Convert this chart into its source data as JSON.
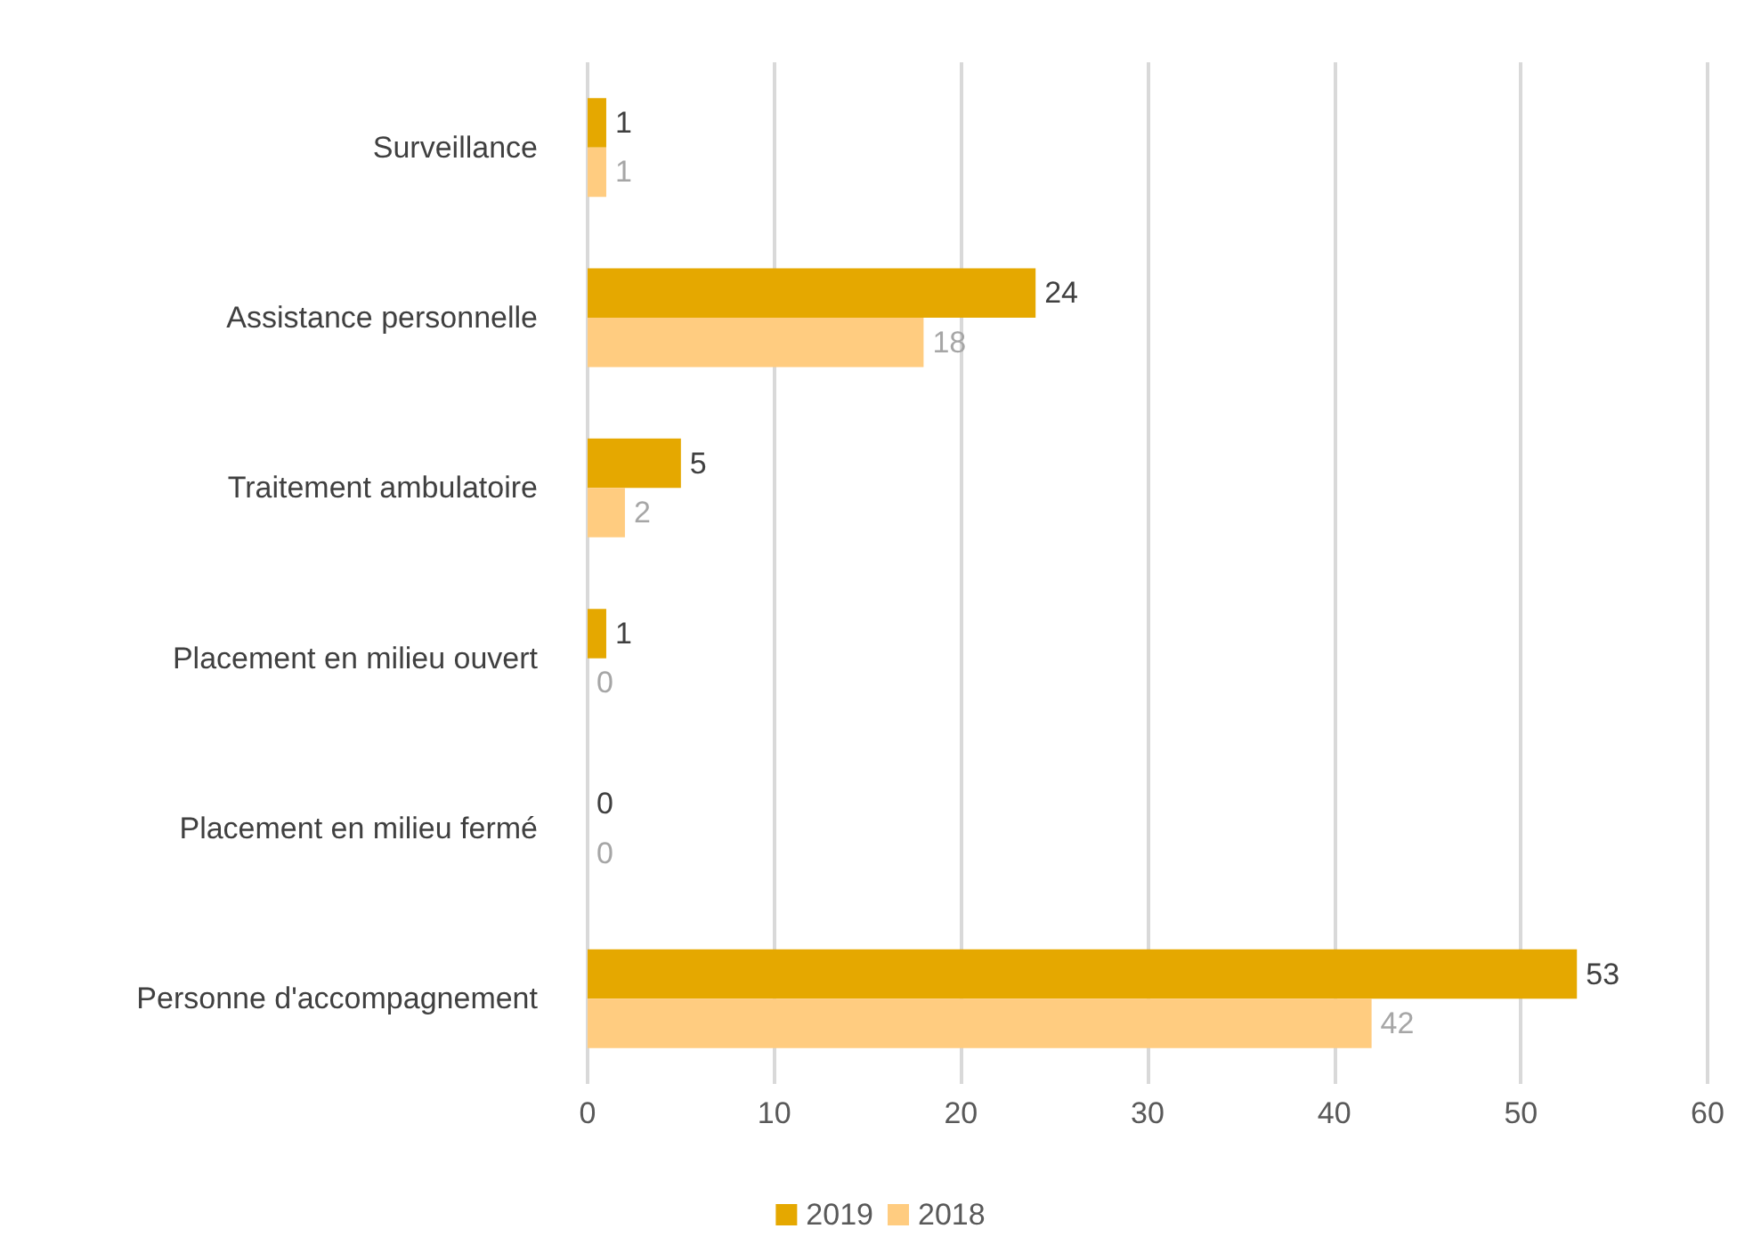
{
  "chart_data": {
    "type": "bar",
    "orientation": "horizontal",
    "categories": [
      "Surveillance",
      "Assistance personnelle",
      "Traitement ambulatoire",
      "Placement en milieu ouvert",
      "Placement en milieu fermé",
      "Personne d'accompagnement"
    ],
    "series": [
      {
        "name": "2019",
        "color": "#e5a800",
        "values": [
          1,
          24,
          5,
          1,
          0,
          53
        ]
      },
      {
        "name": "2018",
        "color": "#ffcc80",
        "values": [
          1,
          18,
          2,
          0,
          0,
          42
        ]
      }
    ],
    "xlim": [
      0,
      60
    ],
    "xticks": [
      0,
      10,
      20,
      30,
      40,
      50,
      60
    ],
    "grid": "x",
    "legend": "bottom",
    "data_labels": true
  }
}
